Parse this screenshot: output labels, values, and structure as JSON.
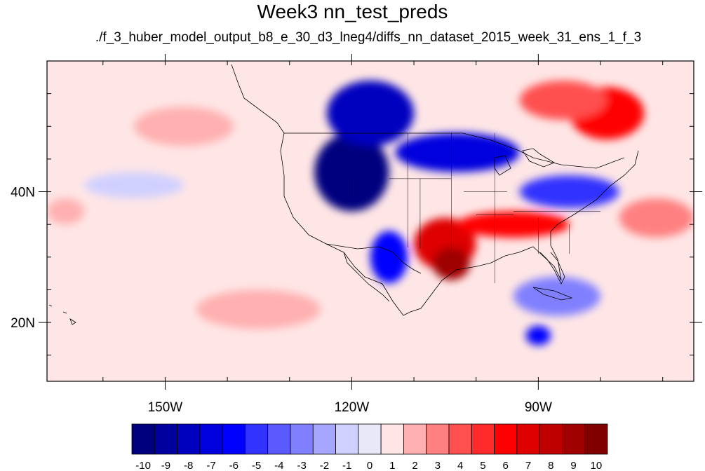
{
  "title": "Week3 nn_test_preds",
  "subtitle": "./f_3_huber_model_output_b8_e_30_d3_lneg4/diffs_nn_dataset_2015_week_31_ens_1_f_3",
  "map": {
    "lon_range": [
      -169,
      -65
    ],
    "lat_range": [
      11,
      60
    ],
    "x_ticks": [
      {
        "lon": -150,
        "label": "150W"
      },
      {
        "lon": -120,
        "label": "120W"
      },
      {
        "lon": -90,
        "label": "90W"
      }
    ],
    "y_ticks": [
      {
        "lat": 40,
        "label": "40N"
      },
      {
        "lat": 20,
        "label": "20N"
      }
    ],
    "background_color": "#ffe6e6",
    "field_regions": [
      {
        "name": "west-us-strong-negative",
        "value": -10,
        "center": [
          -120,
          43
        ],
        "radius": [
          6,
          6
        ]
      },
      {
        "name": "northwest-negative",
        "value": -8,
        "center": [
          -117,
          52
        ],
        "radius": [
          7,
          5
        ]
      },
      {
        "name": "central-negative-band",
        "value": -7,
        "center": [
          -103,
          46
        ],
        "radius": [
          10,
          3
        ]
      },
      {
        "name": "great-lakes-negative",
        "value": -5,
        "center": [
          -85,
          40
        ],
        "radius": [
          8,
          2.5
        ]
      },
      {
        "name": "baja-negative",
        "value": -6,
        "center": [
          -114,
          30
        ],
        "radius": [
          3,
          4
        ]
      },
      {
        "name": "southwest-positive",
        "value": 7,
        "center": [
          -105,
          32
        ],
        "radius": [
          5,
          4
        ]
      },
      {
        "name": "texas-positive",
        "value": 9,
        "center": [
          -104,
          29
        ],
        "radius": [
          3,
          2.5
        ]
      },
      {
        "name": "southeast-positive",
        "value": 6,
        "center": [
          -94,
          35
        ],
        "radius": [
          9,
          2
        ]
      },
      {
        "name": "quebec-positive",
        "value": 6,
        "center": [
          -79,
          52
        ],
        "radius": [
          6,
          4
        ]
      },
      {
        "name": "canada-east-positive",
        "value": 4,
        "center": [
          -86,
          54
        ],
        "radius": [
          7,
          3
        ]
      },
      {
        "name": "atlantic-positive",
        "value": 3,
        "center": [
          -71,
          36
        ],
        "radius": [
          6,
          3
        ]
      },
      {
        "name": "gulf-negative",
        "value": -3,
        "center": [
          -87,
          24
        ],
        "radius": [
          7,
          3
        ]
      },
      {
        "name": "caribbean-negative",
        "value": -6,
        "center": [
          -90,
          18
        ],
        "radius": [
          2,
          1.5
        ]
      },
      {
        "name": "pacific-positive-1",
        "value": 2,
        "center": [
          -135,
          22
        ],
        "radius": [
          10,
          3
        ]
      },
      {
        "name": "pacific-positive-2",
        "value": 2,
        "center": [
          -147,
          50
        ],
        "radius": [
          8,
          3
        ]
      },
      {
        "name": "pacific-negative",
        "value": -1,
        "center": [
          -155,
          41
        ],
        "radius": [
          8,
          2
        ]
      },
      {
        "name": "pacific-positive-west",
        "value": 2,
        "center": [
          -166,
          37
        ],
        "radius": [
          3,
          2
        ]
      }
    ]
  },
  "colorbar": {
    "labels": [
      "-10",
      "-9",
      "-8",
      "-7",
      "-6",
      "-5",
      "-4",
      "-3",
      "-2",
      "-1",
      "0",
      "1",
      "2",
      "3",
      "4",
      "5",
      "6",
      "7",
      "8",
      "9",
      "10"
    ],
    "colors": [
      "#00007f",
      "#00009f",
      "#0000bf",
      "#0000df",
      "#0000ff",
      "#3333ff",
      "#5a5aff",
      "#8080ff",
      "#a6a6ff",
      "#d0d0ff",
      "#e8e8f8",
      "#ffe6e6",
      "#ffb0b0",
      "#ff8080",
      "#ff5050",
      "#ff2a2a",
      "#ff0000",
      "#df0000",
      "#bf0000",
      "#9f0000",
      "#800000"
    ]
  }
}
